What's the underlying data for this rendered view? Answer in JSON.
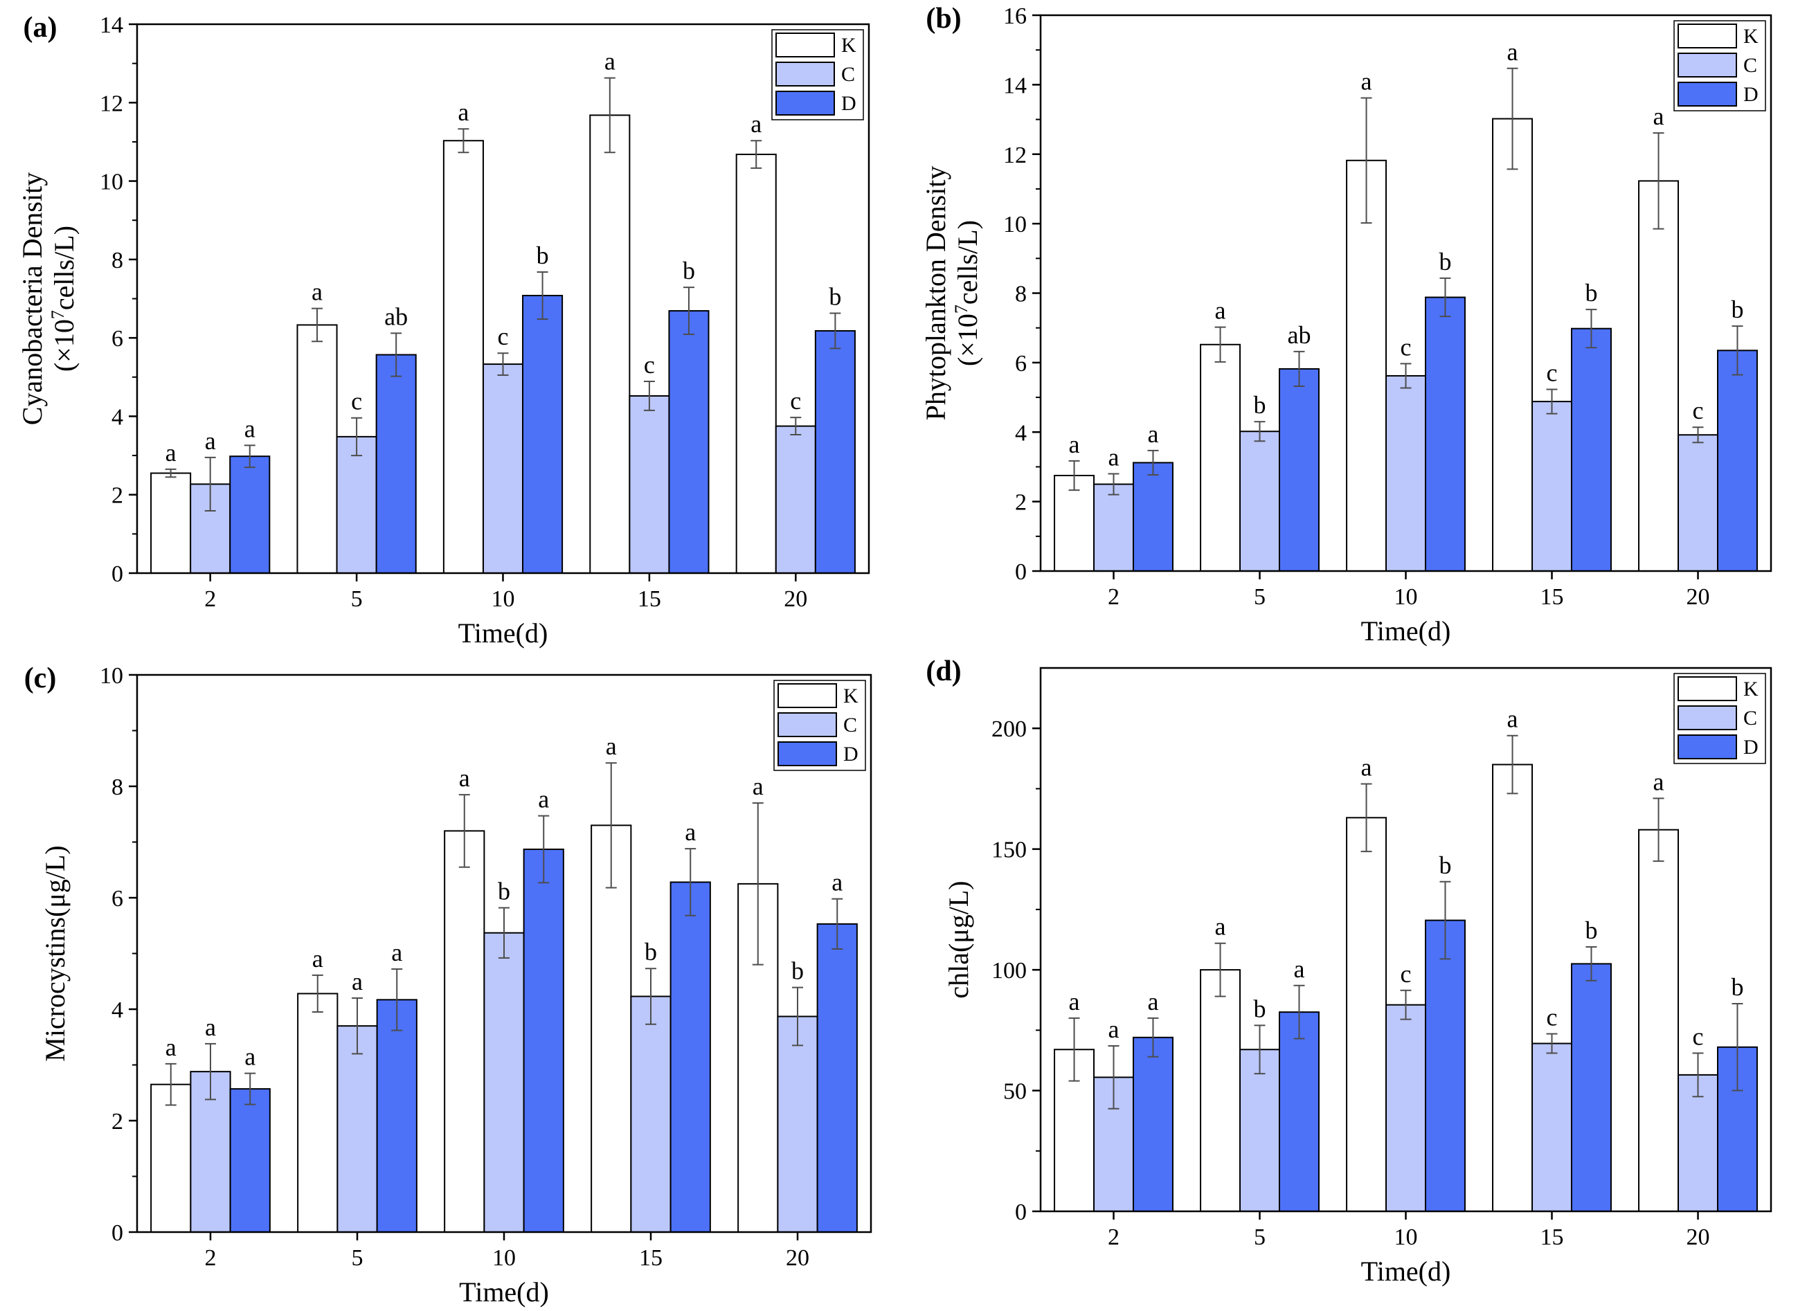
{
  "colors": {
    "K": "#ffffff",
    "C": "#bcc8fb",
    "D": "#4d72f8",
    "axis": "#000000",
    "errorbar": "#4d4d4d"
  },
  "chart_data": [
    {
      "type": "bar",
      "panel": "(a)",
      "xlabel": "Time(d)",
      "ylabel_line1": "Cyanobacteria Density",
      "ylabel_line2_pre": "(×10",
      "ylabel_line2_sup": "7",
      "ylabel_line2_post": "cells/L)",
      "categories": [
        "2",
        "5",
        "10",
        "15",
        "20"
      ],
      "ylim": [
        0,
        14
      ],
      "yticks": [
        0,
        2,
        4,
        6,
        8,
        10,
        12,
        14
      ],
      "legend_position": "top-right",
      "series": [
        {
          "name": "K",
          "values": [
            2.55,
            6.33,
            11.03,
            11.68,
            10.68
          ],
          "errors": [
            0.1,
            0.42,
            0.3,
            0.95,
            0.35
          ],
          "labels": [
            "a",
            "a",
            "a",
            "a",
            "a"
          ]
        },
        {
          "name": "C",
          "values": [
            2.27,
            3.48,
            5.33,
            4.52,
            3.75
          ],
          "errors": [
            0.68,
            0.48,
            0.28,
            0.37,
            0.22
          ],
          "labels": [
            "a",
            "c",
            "c",
            "c",
            "c"
          ]
        },
        {
          "name": "D",
          "values": [
            2.98,
            5.57,
            7.08,
            6.69,
            6.18
          ],
          "errors": [
            0.28,
            0.55,
            0.6,
            0.6,
            0.45
          ],
          "labels": [
            "a",
            "ab",
            "b",
            "b",
            "b"
          ]
        }
      ]
    },
    {
      "type": "bar",
      "panel": "(b)",
      "xlabel": "Time(d)",
      "ylabel_line1": "Phytoplankton Density",
      "ylabel_line2_pre": "(×10",
      "ylabel_line2_sup": "7",
      "ylabel_line2_post": "cells/L)",
      "categories": [
        "2",
        "5",
        "10",
        "15",
        "20"
      ],
      "ylim": [
        0,
        16
      ],
      "yticks": [
        0,
        2,
        4,
        6,
        8,
        10,
        12,
        14,
        16
      ],
      "legend_position": "top-right",
      "series": [
        {
          "name": "K",
          "values": [
            2.75,
            6.52,
            11.82,
            13.02,
            11.23
          ],
          "errors": [
            0.42,
            0.5,
            1.8,
            1.45,
            1.38
          ],
          "labels": [
            "a",
            "a",
            "a",
            "a",
            "a"
          ]
        },
        {
          "name": "C",
          "values": [
            2.5,
            4.02,
            5.62,
            4.88,
            3.92
          ],
          "errors": [
            0.3,
            0.28,
            0.35,
            0.35,
            0.22
          ],
          "labels": [
            "a",
            "b",
            "c",
            "c",
            "c"
          ]
        },
        {
          "name": "D",
          "values": [
            3.12,
            5.82,
            7.88,
            6.98,
            6.35
          ],
          "errors": [
            0.35,
            0.5,
            0.55,
            0.55,
            0.7
          ],
          "labels": [
            "a",
            "ab",
            "b",
            "b",
            "b"
          ]
        }
      ]
    },
    {
      "type": "bar",
      "panel": "(c)",
      "xlabel": "Time(d)",
      "ylabel_line1": "Microcystins(μg/L)",
      "categories": [
        "2",
        "5",
        "10",
        "15",
        "20"
      ],
      "ylim": [
        0,
        10
      ],
      "yticks": [
        0,
        2,
        4,
        6,
        8,
        10
      ],
      "legend_position": "top-right",
      "series": [
        {
          "name": "K",
          "values": [
            2.65,
            4.28,
            7.2,
            7.3,
            6.25
          ],
          "errors": [
            0.37,
            0.33,
            0.65,
            1.12,
            1.45
          ],
          "labels": [
            "a",
            "a",
            "a",
            "a",
            "a"
          ]
        },
        {
          "name": "C",
          "values": [
            2.88,
            3.7,
            5.37,
            4.23,
            3.87
          ],
          "errors": [
            0.5,
            0.5,
            0.45,
            0.5,
            0.52
          ],
          "labels": [
            "a",
            "a",
            "b",
            "b",
            "b"
          ]
        },
        {
          "name": "D",
          "values": [
            2.57,
            4.17,
            6.87,
            6.28,
            5.53
          ],
          "errors": [
            0.28,
            0.55,
            0.6,
            0.6,
            0.45
          ],
          "labels": [
            "a",
            "a",
            "a",
            "a",
            "a"
          ]
        }
      ]
    },
    {
      "type": "bar",
      "panel": "(d)",
      "xlabel": "Time(d)",
      "ylabel_line1": "chla(μg/L)",
      "categories": [
        "2",
        "5",
        "10",
        "15",
        "20"
      ],
      "ylim": [
        0,
        225
      ],
      "yticks": [
        0,
        50,
        100,
        150,
        200
      ],
      "legend_position": "top-right",
      "series": [
        {
          "name": "K",
          "values": [
            67,
            100,
            163,
            185,
            158
          ],
          "errors": [
            13,
            11,
            14,
            12,
            13
          ],
          "labels": [
            "a",
            "a",
            "a",
            "a",
            "a"
          ]
        },
        {
          "name": "C",
          "values": [
            55.5,
            67,
            85.5,
            69.5,
            56.5
          ],
          "errors": [
            13,
            10,
            6,
            4,
            9
          ],
          "labels": [
            "a",
            "b",
            "c",
            "c",
            "c"
          ]
        },
        {
          "name": "D",
          "values": [
            72,
            82.5,
            120.5,
            102.5,
            68
          ],
          "errors": [
            8,
            11,
            16,
            7,
            18
          ],
          "labels": [
            "a",
            "a",
            "b",
            "b",
            "b"
          ]
        }
      ]
    }
  ]
}
